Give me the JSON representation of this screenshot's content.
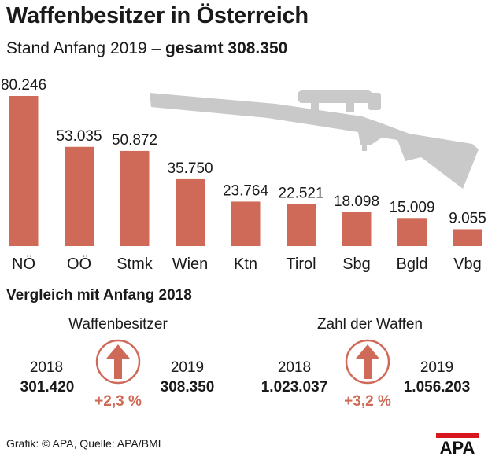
{
  "header": {
    "title": "Waffenbesitzer in Österreich",
    "subtitle_prefix": "Stand Anfang 2019 –",
    "subtitle_bold": "gesamt 308.350"
  },
  "chart_data": {
    "type": "bar",
    "title": "Waffenbesitzer in Österreich",
    "subtitle": "Stand Anfang 2019 – gesamt 308.350",
    "categories": [
      "NÖ",
      "OÖ",
      "Stmk",
      "Wien",
      "Ktn",
      "Tirol",
      "Sbg",
      "Bgld",
      "Vbg"
    ],
    "values": [
      80246,
      53035,
      50872,
      35750,
      23764,
      22521,
      18098,
      15009,
      9055
    ],
    "value_labels": [
      "80.246",
      "53.035",
      "50.872",
      "35.750",
      "23.764",
      "22.521",
      "18.098",
      "15.009",
      "9.055"
    ],
    "xlabel": "",
    "ylabel": "",
    "ylim": [
      0,
      80246
    ],
    "bar_color": "#d06a58"
  },
  "comparison": {
    "title": "Vergleich mit Anfang 2018",
    "owners": {
      "label": "Waffenbesitzer",
      "year_from": "2018",
      "value_from": "301.420",
      "year_to": "2019",
      "value_to": "308.350",
      "change": "+2,3 %"
    },
    "weapons": {
      "label": "Zahl der Waffen",
      "year_from": "2018",
      "value_from": "1.023.037",
      "year_to": "2019",
      "value_to": "1.056.203",
      "change": "+3,2 %"
    }
  },
  "footer": {
    "credit": "Grafik: © APA, Quelle: APA/BMI",
    "logo_text": "APA"
  },
  "colors": {
    "accent": "#d06a58",
    "rifle": "#c9c9c9",
    "logo": "#d8161f"
  }
}
